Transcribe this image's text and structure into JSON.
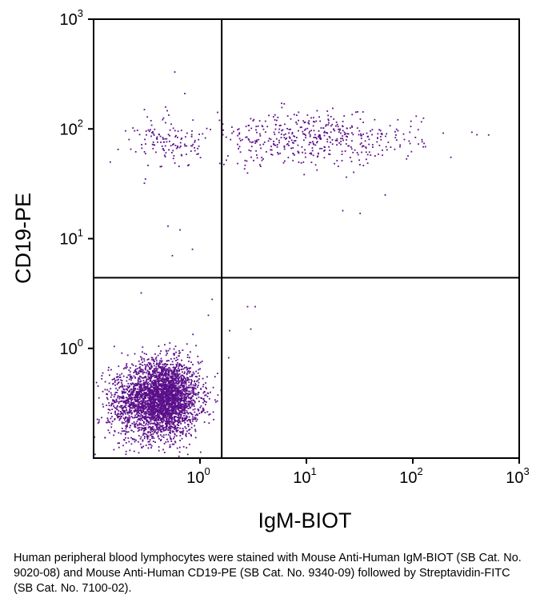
{
  "chart_data": {
    "type": "scatter",
    "x_scale": "log",
    "y_scale": "log",
    "xlim": [
      0.1,
      1000
    ],
    "ylim": [
      0.1,
      1000
    ],
    "xlabel": "IgM-BIOT",
    "ylabel": "CD19-PE",
    "x_ticks": [
      {
        "value": 1,
        "base": "10",
        "exp": "0"
      },
      {
        "value": 10,
        "base": "10",
        "exp": "1"
      },
      {
        "value": 100,
        "base": "10",
        "exp": "2"
      },
      {
        "value": 1000,
        "base": "10",
        "exp": "3"
      }
    ],
    "y_ticks": [
      {
        "value": 1,
        "base": "10",
        "exp": "0"
      },
      {
        "value": 10,
        "base": "10",
        "exp": "1"
      },
      {
        "value": 100,
        "base": "10",
        "exp": "2"
      },
      {
        "value": 1000,
        "base": "10",
        "exp": "3"
      }
    ],
    "quadrant_gates": {
      "x": 1.6,
      "y": 4.4
    },
    "grid": false,
    "point_color": "#5b0f8a",
    "clusters": [
      {
        "name_visible": false,
        "center": [
          0.45,
          0.35
        ],
        "spread_log10": [
          0.17,
          0.17
        ],
        "count": 3200
      },
      {
        "name_visible": false,
        "center": [
          0.2,
          0.3
        ],
        "spread_log10": [
          0.12,
          0.18
        ],
        "count": 350
      },
      {
        "name_visible": false,
        "center": [
          0.5,
          75
        ],
        "spread_log10": [
          0.15,
          0.12
        ],
        "count": 120
      },
      {
        "name_visible": false,
        "center": [
          12,
          80
        ],
        "spread_log10": [
          0.5,
          0.12
        ],
        "count": 480
      }
    ],
    "sparse_points": [
      [
        0.58,
        330
      ],
      [
        0.72,
        210
      ],
      [
        0.3,
        150
      ],
      [
        0.5,
        13
      ],
      [
        0.65,
        12
      ],
      [
        0.55,
        7
      ],
      [
        0.85,
        8
      ],
      [
        0.2,
        96
      ],
      [
        0.17,
        65
      ],
      [
        0.3,
        32
      ],
      [
        2.8,
        2.4
      ],
      [
        3.3,
        2.4
      ],
      [
        3.0,
        1.5
      ],
      [
        1.9,
        1.45
      ],
      [
        1.6,
        1.0
      ],
      [
        0.28,
        3.2
      ],
      [
        1.3,
        2.8
      ],
      [
        1.2,
        2.0
      ],
      [
        22,
        18
      ],
      [
        32,
        17
      ],
      [
        55,
        25
      ]
    ]
  },
  "caption": "Human peripheral blood lymphocytes were stained with Mouse Anti-Human IgM-BIOT (SB Cat. No. 9020-08) and Mouse Anti-Human CD19-PE (SB Cat. No. 9340-09) followed by Streptavidin-FITC (SB Cat. No. 7100-02)."
}
